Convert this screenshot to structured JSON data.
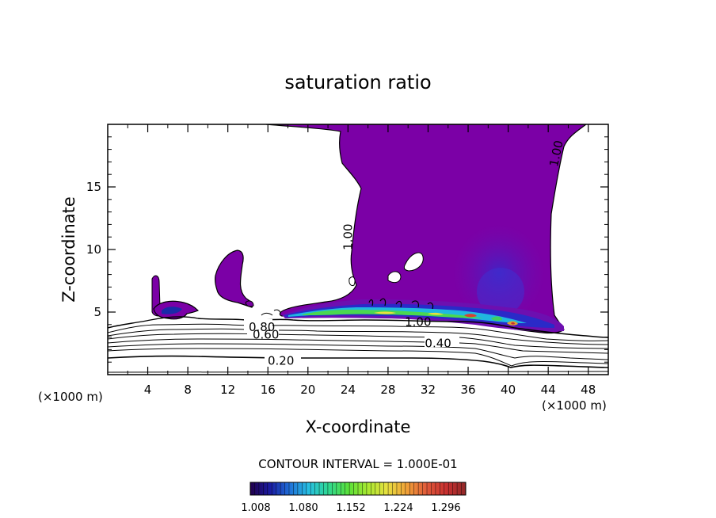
{
  "chart_data": {
    "type": "contour",
    "title": "saturation ratio",
    "xlabel": "X-coordinate",
    "ylabel": "Z-coordinate",
    "x_unit": "(×1000 m)",
    "x_unit_right": "(×1000 m)",
    "xlim": [
      0,
      50
    ],
    "ylim": [
      0,
      20
    ],
    "x_ticks": [
      4,
      8,
      12,
      16,
      20,
      24,
      28,
      32,
      36,
      40,
      44,
      48
    ],
    "y_ticks": [
      5,
      10,
      15
    ],
    "contour_labels": [
      {
        "text": "1.00",
        "x": 24.4,
        "z": 11.0
      },
      {
        "text": "1.00",
        "x": 45.2,
        "z": 17.6
      },
      {
        "text": "1.00",
        "x": 31.0,
        "z": 4.2
      },
      {
        "text": "0.80",
        "x": 15.4,
        "z": 3.8
      },
      {
        "text": "0.60",
        "x": 15.8,
        "z": 3.2
      },
      {
        "text": "0.40",
        "x": 33.0,
        "z": 2.5
      },
      {
        "text": "0.20",
        "x": 17.3,
        "z": 1.1
      }
    ],
    "contour_interval": "CONTOUR INTERVAL = 1.000E-01",
    "colorbar": {
      "ticks": [
        "1.008",
        "1.080",
        "1.152",
        "1.224",
        "1.296"
      ],
      "colors": [
        "#22004a",
        "#1a1aa0",
        "#1f6fd8",
        "#27c0e0",
        "#30d890",
        "#59e03a",
        "#a8e830",
        "#e8e040",
        "#f0a038",
        "#e05a3a",
        "#c83030",
        "#902828"
      ]
    },
    "saturated_color": "#7b00a6"
  }
}
